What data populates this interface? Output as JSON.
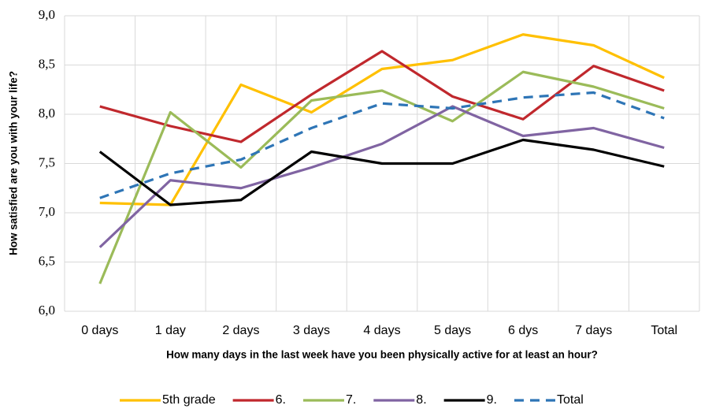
{
  "chart_data": {
    "type": "line",
    "x_label": "How many days in the last week have you been physically active for at least an hour?",
    "y_label": "How satisfied are you with your life?",
    "categories": [
      "0 days",
      "1 day",
      "2 days",
      "3 days",
      "4 days",
      "5 days",
      "6 dys",
      "7 days",
      "Total"
    ],
    "series": [
      {
        "name": "5th grade",
        "color": "#ffc000",
        "values": [
          7.1,
          7.08,
          8.3,
          8.02,
          8.46,
          8.55,
          8.81,
          8.7,
          8.37
        ]
      },
      {
        "name": "6.",
        "color": "#c0282d",
        "values": [
          8.08,
          7.88,
          7.72,
          8.2,
          8.64,
          8.18,
          7.95,
          8.49,
          8.24
        ]
      },
      {
        "name": "7.",
        "color": "#9bbb59",
        "values": [
          6.28,
          8.02,
          7.46,
          8.14,
          8.24,
          7.93,
          8.43,
          8.28,
          8.06
        ]
      },
      {
        "name": "8.",
        "color": "#8064a2",
        "values": [
          6.65,
          7.33,
          7.25,
          7.46,
          7.7,
          8.08,
          7.78,
          7.86,
          7.66
        ]
      },
      {
        "name": "9.",
        "color": "#000000",
        "values": [
          7.62,
          7.08,
          7.13,
          7.62,
          7.5,
          7.5,
          7.74,
          7.64,
          7.47
        ]
      },
      {
        "name": "Total",
        "color": "#2e75b6",
        "dashed": true,
        "values": [
          7.15,
          7.4,
          7.54,
          7.86,
          8.11,
          8.06,
          8.17,
          8.22,
          7.96
        ]
      }
    ],
    "ylim": [
      6,
      9
    ],
    "yticks": [
      {
        "value": 6,
        "label": "6,0"
      },
      {
        "value": 6.5,
        "label": "6,5"
      },
      {
        "value": 7,
        "label": "7,0"
      },
      {
        "value": 7.5,
        "label": "7,5"
      },
      {
        "value": 8,
        "label": "8,0"
      },
      {
        "value": 8.5,
        "label": "8,5"
      },
      {
        "value": 9,
        "label": "9,0"
      }
    ],
    "grid": true,
    "legend": "bottom"
  }
}
